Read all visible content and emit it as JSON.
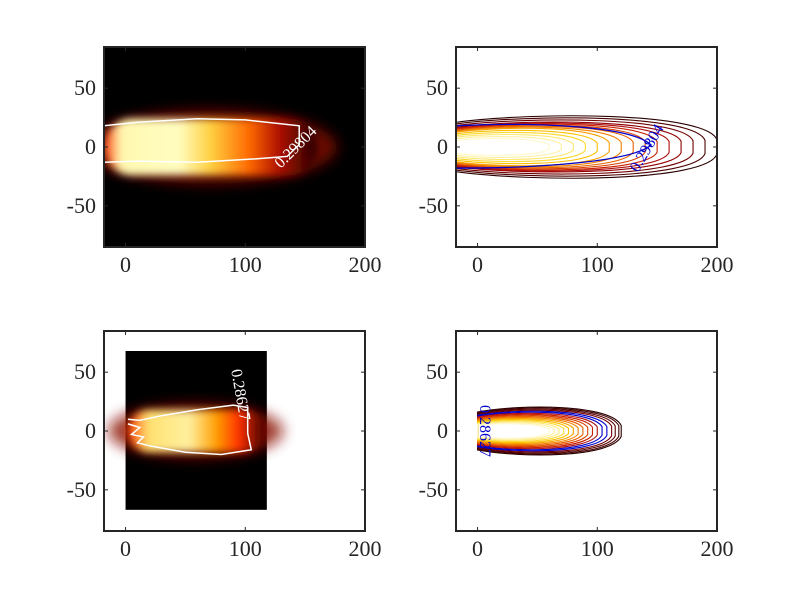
{
  "chart_data": [
    {
      "type": "heatmap",
      "panel": "top-left",
      "background": "#000000",
      "xlim": [
        -18,
        200
      ],
      "ylim": [
        -85,
        85
      ],
      "xticks": [
        0,
        100,
        200
      ],
      "yticks": [
        50,
        0,
        -50
      ],
      "xtick_labels": [
        "0",
        "100",
        "200"
      ],
      "ytick_labels": [
        "50",
        "0",
        "-50"
      ],
      "extent": {
        "x": [
          -18,
          200
        ],
        "y": [
          -85,
          85
        ]
      },
      "core": {
        "x_start": -18,
        "x_end": 160,
        "half_width": 24
      },
      "contour_level": "0.29804",
      "contour_color": "#ffffff",
      "contour": [
        [
          -18,
          18
        ],
        [
          10,
          21
        ],
        [
          60,
          24
        ],
        [
          100,
          23
        ],
        [
          145,
          18
        ],
        [
          145,
          2
        ],
        [
          135,
          -8
        ],
        [
          110,
          -10
        ],
        [
          60,
          -13
        ],
        [
          10,
          -12
        ],
        [
          -18,
          -13
        ]
      ],
      "contour_label_pos": [
        145,
        -3
      ]
    },
    {
      "type": "contour",
      "panel": "top-right",
      "xlim": [
        -18,
        200
      ],
      "ylim": [
        -85,
        85
      ],
      "xticks": [
        0,
        100,
        200
      ],
      "yticks": [
        50,
        0,
        -50
      ],
      "xtick_labels": [
        "0",
        "100",
        "200"
      ],
      "ytick_labels": [
        "50",
        "0",
        "-50"
      ],
      "x_start": -18,
      "x_ends": [
        200,
        190,
        180,
        170,
        160,
        150,
        140,
        130,
        120,
        110,
        100,
        90,
        80,
        70,
        60
      ],
      "half_widths": [
        30,
        28,
        26,
        24,
        23,
        22,
        21,
        20,
        19,
        18,
        16,
        14,
        12,
        10,
        8
      ],
      "level_colors": [
        "#2a0000",
        "#4a0000",
        "#6e0000",
        "#900000",
        "#b01010",
        "#c82000",
        "#d84000",
        "#e86000",
        "#f08000",
        "#f8a000",
        "#fbc000",
        "#fcd830",
        "#fde870",
        "#fff0a0",
        "#fff8c8"
      ],
      "highlight_contour_color": "#0000cc",
      "contour_level": "0.29804",
      "contour_label_pos": [
        145,
        -3
      ]
    },
    {
      "type": "heatmap",
      "panel": "bottom-left",
      "background": "#000000",
      "xlim": [
        -18,
        200
      ],
      "ylim": [
        -85,
        85
      ],
      "xticks": [
        0,
        100,
        200
      ],
      "yticks": [
        50,
        0,
        -50
      ],
      "xtick_labels": [
        "0",
        "100",
        "200"
      ],
      "ytick_labels": [
        "50",
        "0",
        "-50"
      ],
      "extent": {
        "x": [
          0,
          118
        ],
        "y": [
          -67,
          68
        ]
      },
      "core": {
        "x_start": 2,
        "x_end": 115,
        "half_width": 18
      },
      "contour_level": "0.28627",
      "contour_color": "#ffffff",
      "contour": [
        [
          2,
          10
        ],
        [
          12,
          9
        ],
        [
          30,
          13
        ],
        [
          60,
          18
        ],
        [
          90,
          22
        ],
        [
          102,
          20
        ],
        [
          102,
          -2
        ],
        [
          105,
          -16
        ],
        [
          80,
          -20
        ],
        [
          50,
          -18
        ],
        [
          22,
          -13
        ],
        [
          10,
          -10
        ],
        [
          15,
          -5
        ],
        [
          5,
          -3
        ],
        [
          12,
          3
        ],
        [
          2,
          6
        ]
      ],
      "contour_label_pos": [
        92,
        30
      ]
    },
    {
      "type": "contour",
      "panel": "bottom-right",
      "xlim": [
        -18,
        200
      ],
      "ylim": [
        -85,
        85
      ],
      "xticks": [
        0,
        100,
        200
      ],
      "yticks": [
        50,
        0,
        -50
      ],
      "xtick_labels": [
        "0",
        "100",
        "200"
      ],
      "ytick_labels": [
        "50",
        "0",
        "-50"
      ],
      "x_start": 0,
      "x_ends": [
        120,
        118,
        115,
        112,
        108,
        104,
        100,
        96,
        92,
        88,
        84,
        80,
        76,
        72,
        68,
        64,
        60
      ],
      "half_widths": [
        23,
        22,
        21,
        20,
        19,
        18,
        17,
        16,
        15,
        14,
        13,
        12,
        11,
        10,
        9,
        8,
        7
      ],
      "level_colors": [
        "#2a0000",
        "#400000",
        "#580000",
        "#700000",
        "#0000cc",
        "#0000cc",
        "#b01010",
        "#c82000",
        "#d84000",
        "#e86000",
        "#f08000",
        "#f8a000",
        "#fbc000",
        "#fcd830",
        "#fde870",
        "#fff0a0",
        "#fff8c8"
      ],
      "contour_level": "0.28627",
      "contour_label_pos": [
        2,
        0
      ]
    }
  ]
}
